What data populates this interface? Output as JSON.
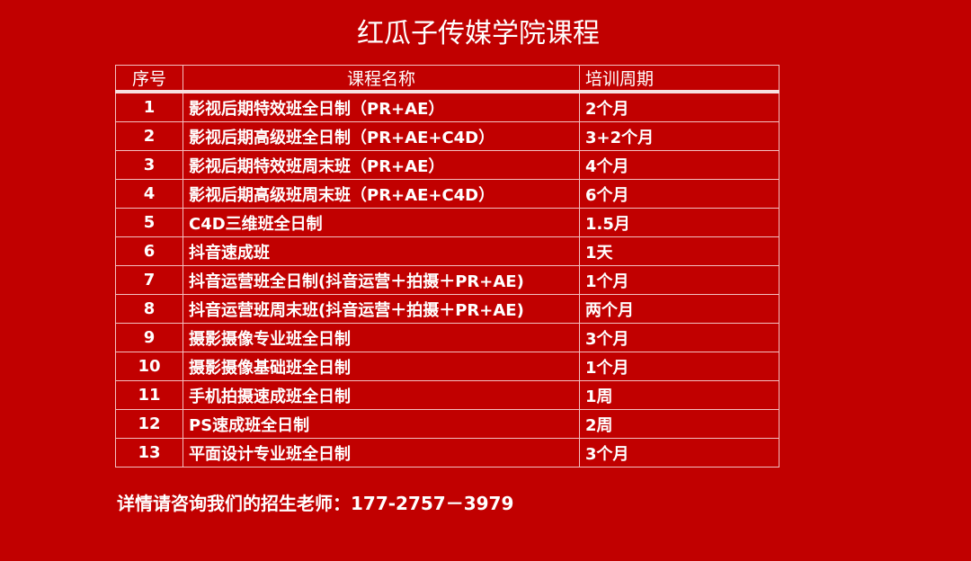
{
  "title": "红瓜子传媒学院课程",
  "table": {
    "headers": [
      "序号",
      "课程名称",
      "培训周期"
    ],
    "rows": [
      [
        "1",
        "影视后期特效班全日制（PR+AE）",
        "2个月"
      ],
      [
        "2",
        "影视后期高级班全日制（PR+AE+C4D）",
        "3+2个月"
      ],
      [
        "3",
        "影视后期特效班周末班（PR+AE）",
        "4个月"
      ],
      [
        "4",
        "影视后期高级班周末班（PR+AE+C4D）",
        "6个月"
      ],
      [
        "5",
        "C4D三维班全日制",
        "1.5月"
      ],
      [
        "6",
        "抖音速成班",
        "1天"
      ],
      [
        "7",
        "抖音运营班全日制(抖音运营＋拍摄＋PR+AE)",
        "1个月"
      ],
      [
        "8",
        "抖音运营班周末班(抖音运营＋拍摄＋PR+AE)",
        "两个月"
      ],
      [
        "9",
        "摄影摄像专业班全日制",
        "3个月"
      ],
      [
        "10",
        "摄影摄像基础班全日制",
        "1个月"
      ],
      [
        "11",
        "手机拍摄速成班全日制",
        "1周"
      ],
      [
        "12",
        "PS速成班全日制",
        "2周"
      ],
      [
        "13",
        "平面设计专业班全日制",
        "3个月"
      ]
    ]
  },
  "footer": "详情请咨询我们的招生老师：177-2757－3979",
  "colors": {
    "background": "#c10000",
    "text": "#ffffff"
  }
}
